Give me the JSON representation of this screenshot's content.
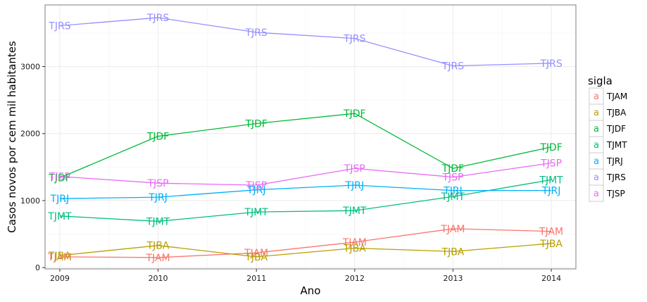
{
  "chart_data": {
    "type": "line",
    "xlabel": "Ano",
    "ylabel": "Casos novos por cem mil habitantes",
    "x": [
      2009,
      2010,
      2011,
      2012,
      2013,
      2014
    ],
    "xlim": [
      2008.85,
      2014.25
    ],
    "ylim": [
      -20,
      3920
    ],
    "x_ticks": [
      "2009",
      "2010",
      "2011",
      "2012",
      "2013",
      "2014"
    ],
    "y_ticks": [
      {
        "value": 0,
        "label": "0"
      },
      {
        "value": 1000,
        "label": "1000"
      },
      {
        "value": 2000,
        "label": "2000"
      },
      {
        "value": 3000,
        "label": "3000"
      }
    ],
    "grid": true,
    "legend": {
      "title": "sigla",
      "position": "right",
      "key_glyph": "a"
    },
    "series": [
      {
        "name": "TJAM",
        "color": "#F8766D",
        "values": [
          160,
          150,
          220,
          380,
          580,
          540
        ]
      },
      {
        "name": "TJBA",
        "color": "#B79F00",
        "values": [
          180,
          330,
          160,
          290,
          240,
          360
        ]
      },
      {
        "name": "TJDF",
        "color": "#00BA38",
        "values": [
          1340,
          1960,
          2150,
          2300,
          1480,
          1800
        ]
      },
      {
        "name": "TJMT",
        "color": "#00BF7D",
        "values": [
          770,
          690,
          830,
          850,
          1060,
          1310
        ]
      },
      {
        "name": "TJRJ",
        "color": "#00B0F6",
        "values": [
          1030,
          1050,
          1160,
          1230,
          1150,
          1150
        ]
      },
      {
        "name": "TJRS",
        "color": "#9590FF",
        "values": [
          3610,
          3730,
          3510,
          3420,
          3010,
          3050
        ]
      },
      {
        "name": "TJSP",
        "color": "#E76BF3",
        "values": [
          1360,
          1260,
          1230,
          1480,
          1350,
          1560
        ]
      }
    ]
  }
}
